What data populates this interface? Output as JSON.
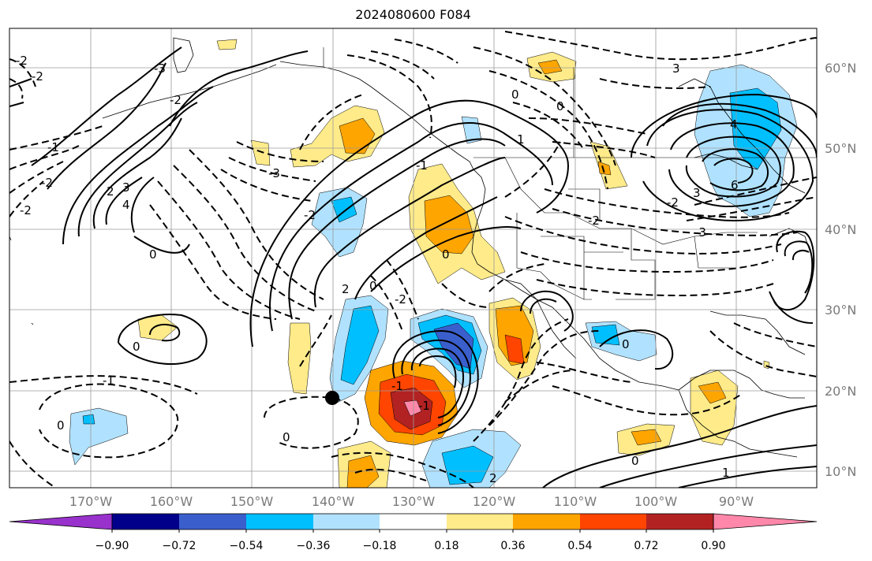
{
  "title": "2024080600 F084",
  "map": {
    "lat_labels": [
      "60°N",
      "50°N",
      "40°N",
      "30°N",
      "20°N",
      "10°N"
    ],
    "lon_labels": [
      "170°W",
      "160°W",
      "150°W",
      "140°W",
      "130°W",
      "120°W",
      "110°W",
      "100°W",
      "90°W"
    ],
    "contour_labels": [
      "-2",
      "-2",
      "-3",
      "-2",
      "-1",
      "-2",
      "-3",
      "-2",
      "-1",
      "0",
      "-1",
      "-2",
      "0",
      "2",
      "3",
      "4",
      "1",
      "0",
      "-1",
      "-2",
      "-3",
      "1",
      "0",
      "-1",
      "2",
      "3",
      "-2",
      "-1",
      "0",
      "0",
      "-1",
      "-2",
      "-3",
      "0",
      "-2",
      "-1",
      "0",
      "0",
      "1",
      "2",
      "0",
      "-2",
      "-3",
      "4",
      "6",
      "3",
      "-2",
      "-3",
      "2",
      "-1",
      "0",
      "-2",
      "3",
      "-1",
      "-1",
      "0",
      "2",
      "2",
      "-1",
      "0",
      "0",
      "-1",
      "1",
      "2",
      "0",
      "-1"
    ],
    "marker": "storm-position-dot"
  },
  "colorbar": {
    "ticks": [
      "−0.90",
      "−0.72",
      "−0.54",
      "−0.36",
      "−0.18",
      "0.18",
      "0.36",
      "0.54",
      "0.72",
      "0.90"
    ],
    "colors": [
      "#9932cc",
      "#00008b",
      "#3a5fcd",
      "#00bfff",
      "#b0e2ff",
      "#ffffff",
      "#ffeb8a",
      "#ffa500",
      "#ff4500",
      "#b22222",
      "#ff88aa"
    ]
  }
}
